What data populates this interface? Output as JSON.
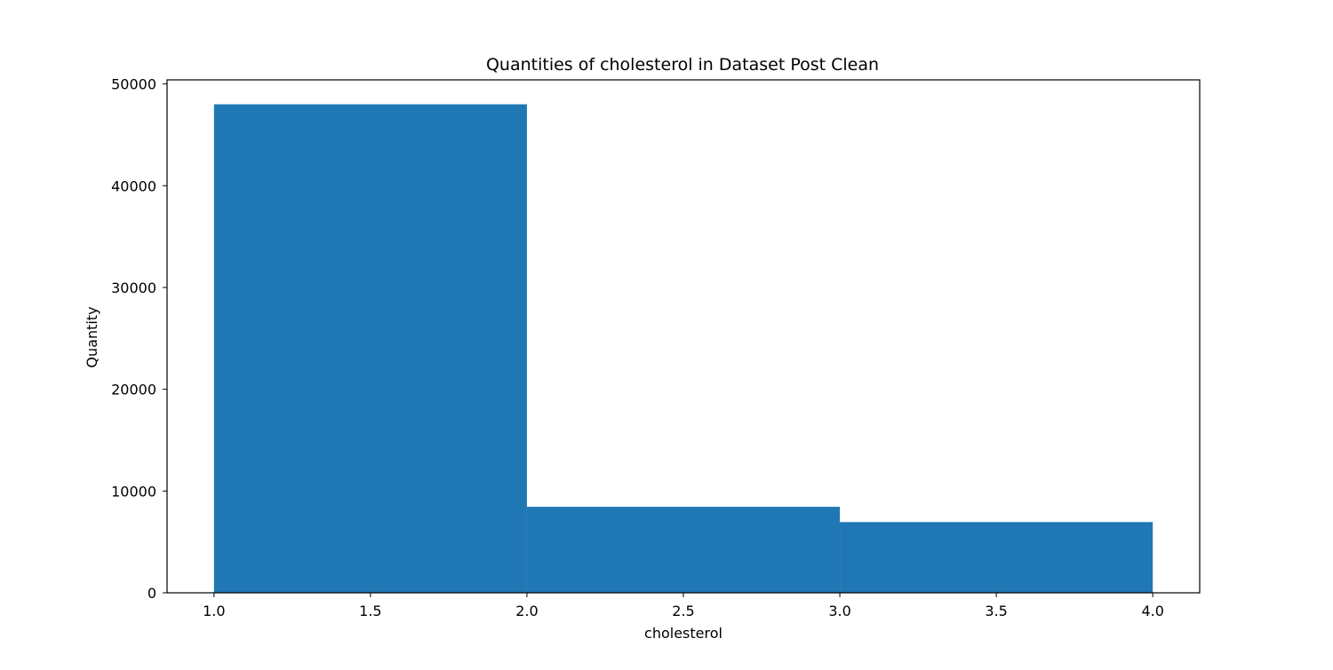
{
  "chart_data": {
    "type": "bar",
    "subtype": "histogram",
    "title": "Quantities of cholesterol in Dataset Post Clean",
    "xlabel": "cholesterol",
    "ylabel": "Quantity",
    "bins": [
      {
        "x0": 1.0,
        "x1": 2.0,
        "value": 48000
      },
      {
        "x0": 2.0,
        "x1": 3.0,
        "value": 8450
      },
      {
        "x0": 3.0,
        "x1": 4.0,
        "value": 6950
      }
    ],
    "xlim": [
      0.85,
      4.15
    ],
    "ylim": [
      0,
      50400
    ],
    "xticks": [
      1.0,
      1.5,
      2.0,
      2.5,
      3.0,
      3.5,
      4.0
    ],
    "xtick_labels": [
      "1.0",
      "1.5",
      "2.0",
      "2.5",
      "3.0",
      "3.5",
      "4.0"
    ],
    "yticks": [
      0,
      10000,
      20000,
      30000,
      40000,
      50000
    ],
    "ytick_labels": [
      "0",
      "10000",
      "20000",
      "30000",
      "40000",
      "50000"
    ],
    "bar_color": "#1f77b4",
    "grid": false,
    "legend": false
  }
}
